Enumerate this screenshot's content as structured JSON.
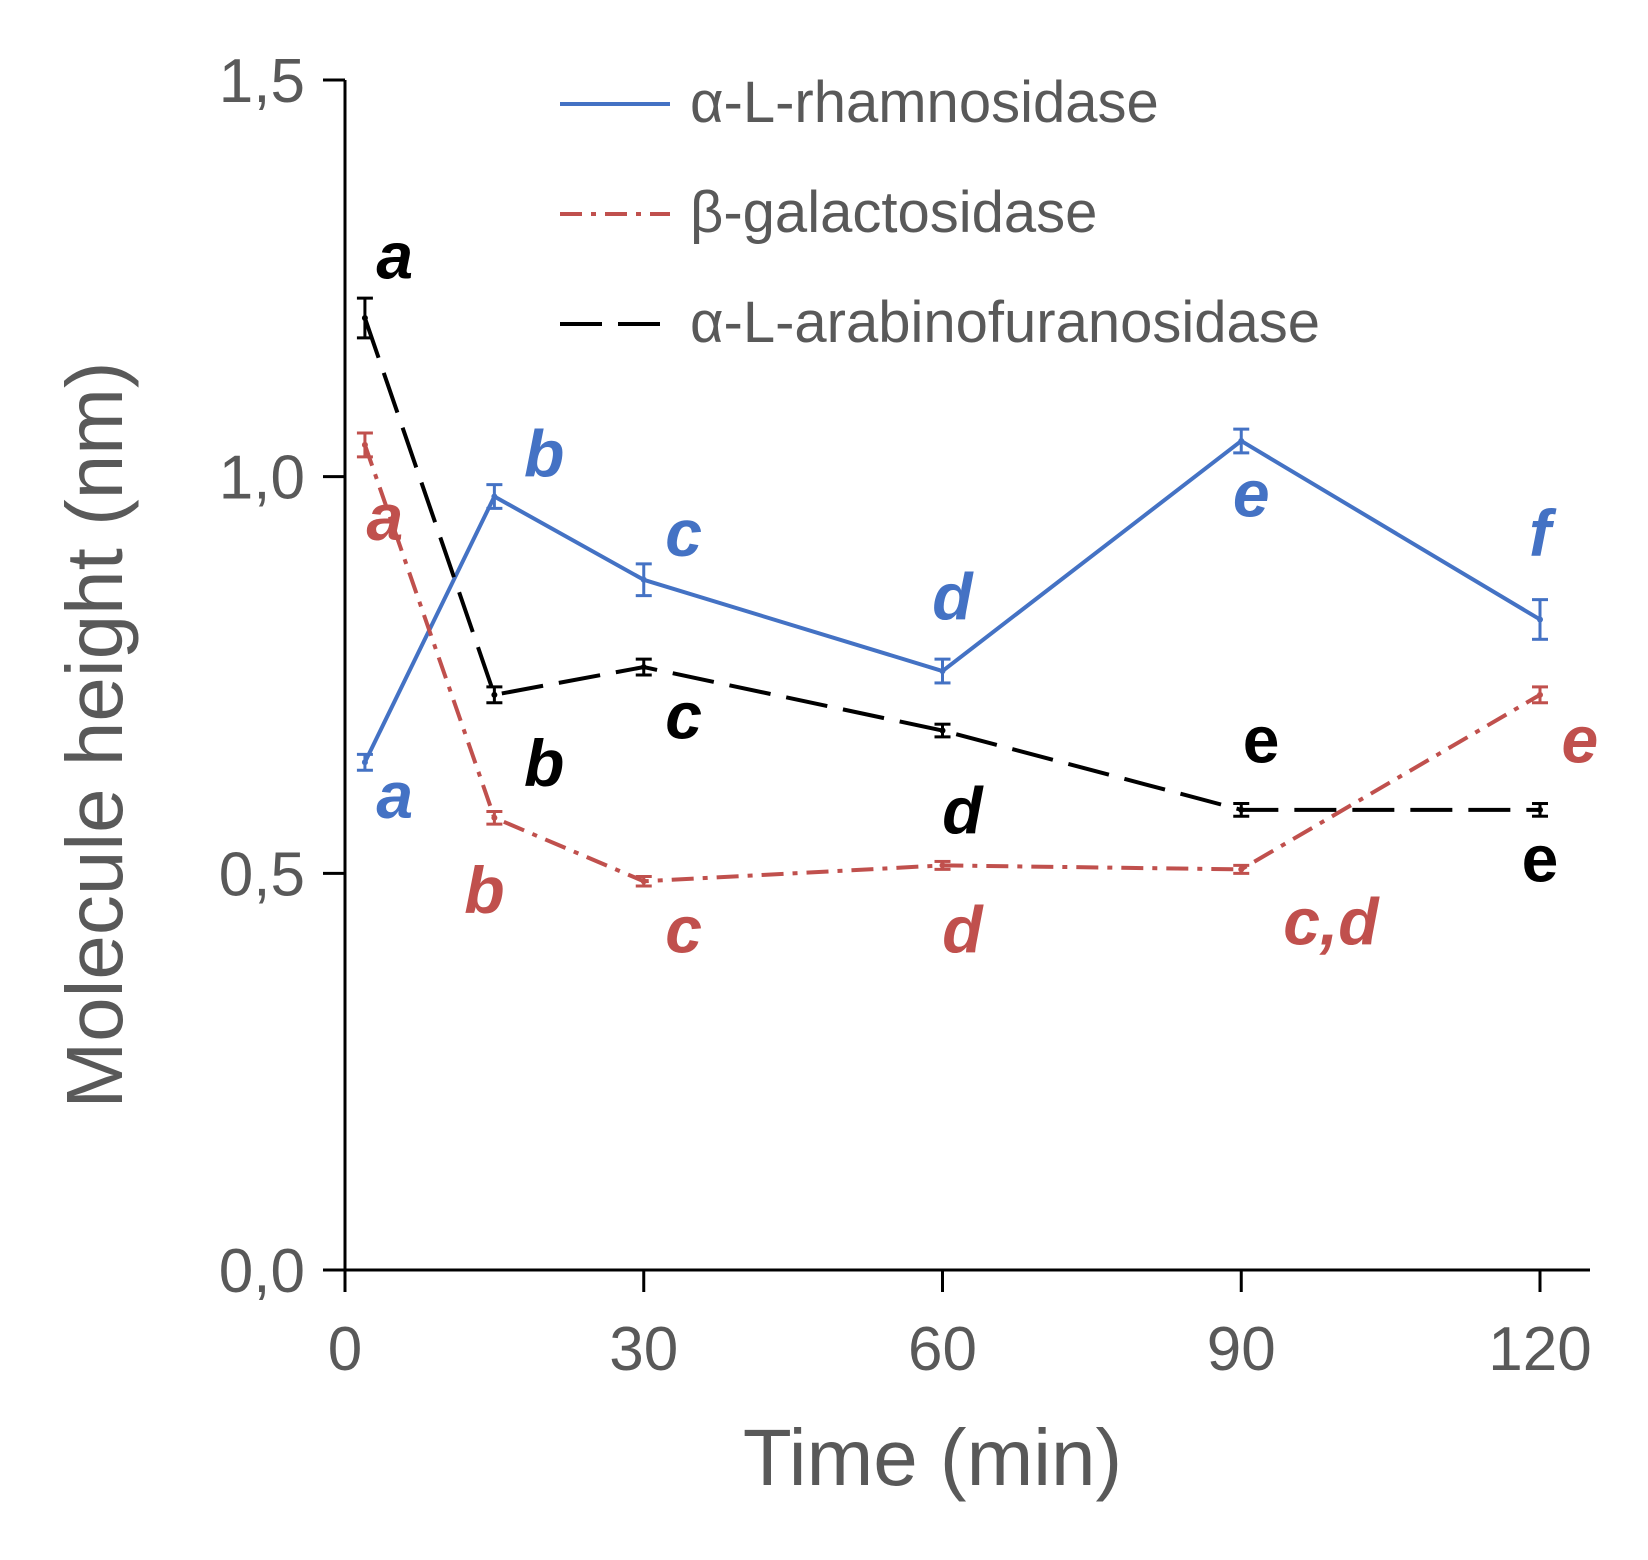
{
  "chart_data": {
    "type": "line",
    "title": "",
    "xlabel": "Time (min)",
    "ylabel": "Molecule height (nm)",
    "xlim": [
      0,
      125
    ],
    "ylim": [
      0,
      1.5
    ],
    "x_ticks": [
      0,
      30,
      60,
      90,
      120
    ],
    "x_tick_labels": [
      "0",
      "30",
      "60",
      "90",
      "120"
    ],
    "y_ticks": [
      0,
      0.5,
      1.0,
      1.5
    ],
    "y_tick_labels": [
      "0,0",
      "0,5",
      "1,0",
      "1,5"
    ],
    "legend_position": "top-right",
    "series": [
      {
        "name": "α-L-rhamnosidase",
        "color": "#4472C4",
        "dash": "solid",
        "x": [
          2,
          15,
          30,
          60,
          90,
          120
        ],
        "values": [
          0.64,
          0.975,
          0.87,
          0.755,
          1.045,
          0.82
        ],
        "errors": [
          0.01,
          0.015,
          0.02,
          0.015,
          0.015,
          0.025
        ],
        "labels": [
          "a",
          "b",
          "c",
          "d",
          "e",
          "f"
        ],
        "label_y": [
          0.57,
          1.0,
          0.9,
          0.82,
          0.95,
          0.9
        ],
        "label_x": [
          5,
          20,
          34,
          61,
          91,
          120
        ],
        "label_upright": [
          false,
          false,
          false,
          false,
          false,
          false
        ]
      },
      {
        "name": "β-galactosidase",
        "color": "#C0504D",
        "dash": "dashdot",
        "x": [
          2,
          15,
          30,
          60,
          90,
          120
        ],
        "values": [
          1.04,
          0.57,
          0.49,
          0.51,
          0.505,
          0.725
        ],
        "errors": [
          0.015,
          0.008,
          0.006,
          0.005,
          0.005,
          0.01
        ],
        "labels": [
          "a",
          "b",
          "c",
          "d",
          "c,d",
          "e"
        ],
        "label_y": [
          0.92,
          0.45,
          0.4,
          0.4,
          0.41,
          0.64
        ],
        "label_x": [
          4,
          14,
          34,
          62,
          99,
          124
        ],
        "label_upright": [
          false,
          false,
          false,
          false,
          false,
          false
        ]
      },
      {
        "name": "α-L-arabinofuranosidase",
        "color": "#000000",
        "dash": "dash",
        "x": [
          2,
          15,
          30,
          60,
          90,
          120
        ],
        "values": [
          1.2,
          0.725,
          0.76,
          0.68,
          0.58,
          0.58
        ],
        "errors": [
          0.025,
          0.01,
          0.01,
          0.008,
          0.008,
          0.008
        ],
        "labels": [
          "a",
          "b",
          "c",
          "d",
          "e",
          "e"
        ],
        "label_y": [
          1.25,
          0.61,
          0.67,
          0.55,
          0.64,
          0.49
        ],
        "label_x": [
          5,
          20,
          34,
          62,
          92,
          120
        ],
        "label_upright": [
          false,
          false,
          false,
          false,
          true,
          true
        ]
      }
    ]
  }
}
